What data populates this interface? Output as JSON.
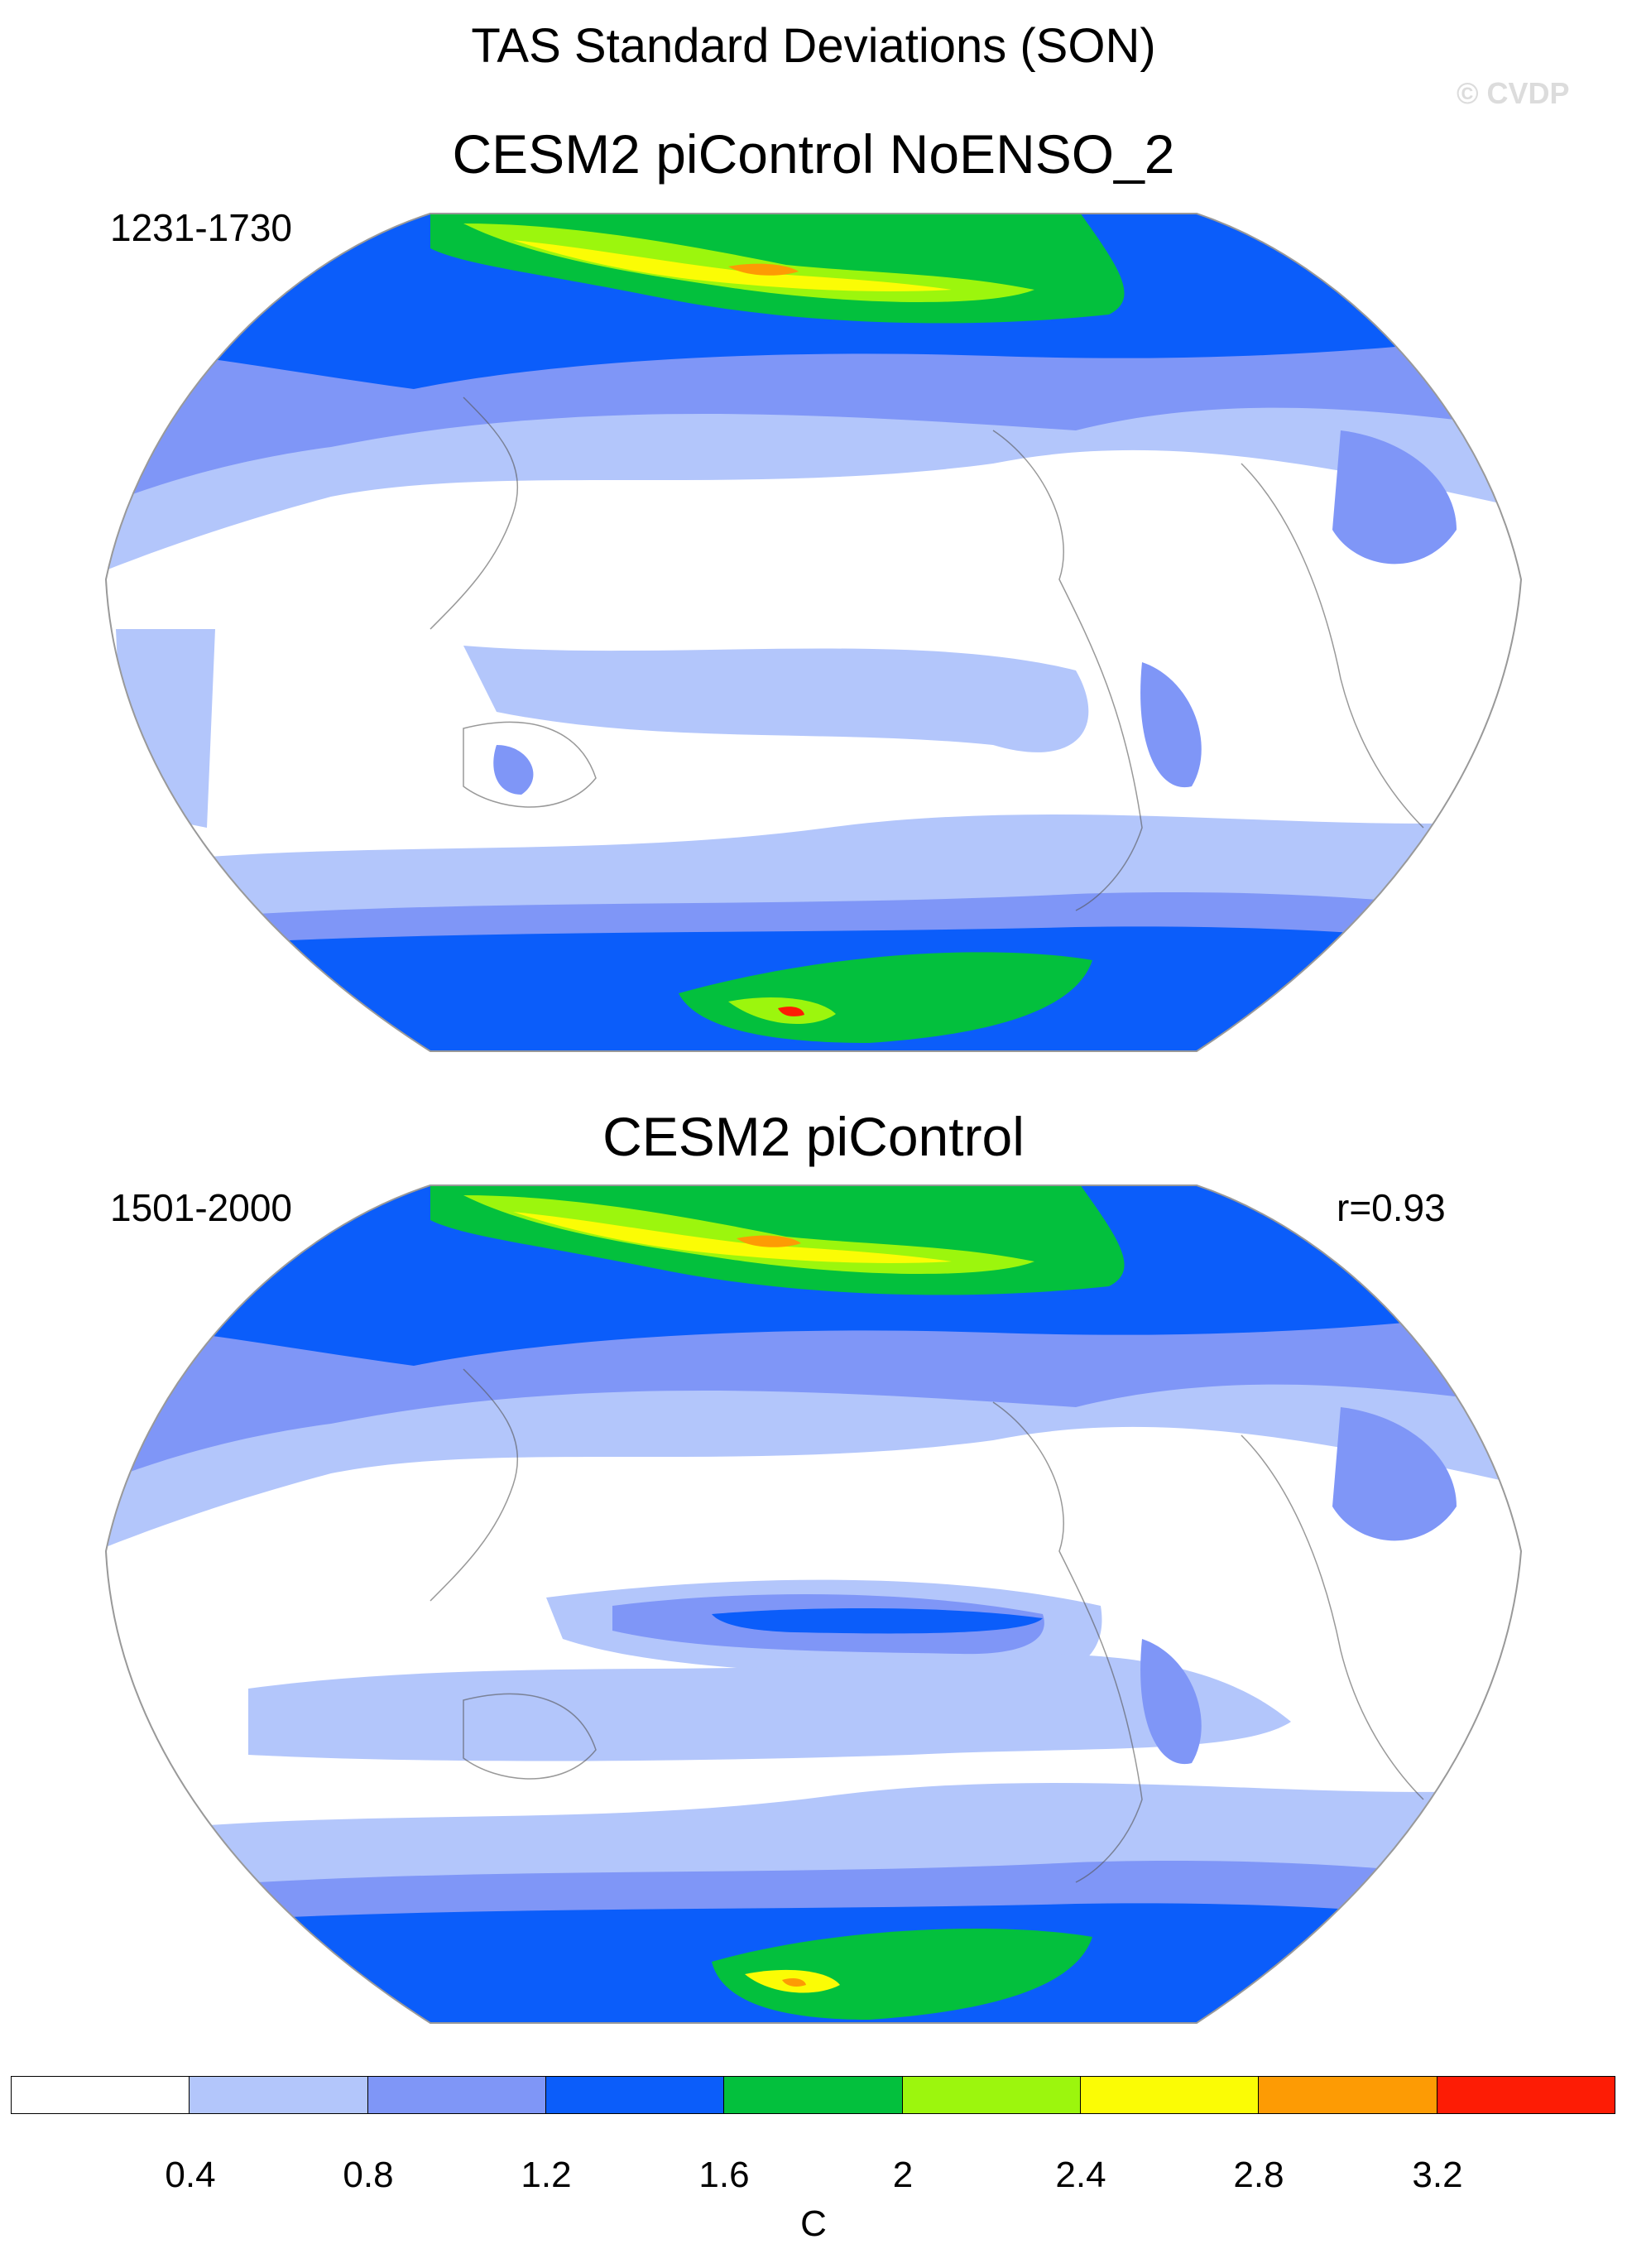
{
  "header": {
    "title": "TAS Standard Deviations (SON)",
    "watermark": "© CVDP"
  },
  "panels": [
    {
      "title": "CESM2 piControl NoENSO_2",
      "period": "1231-1730",
      "corr": ""
    },
    {
      "title": "CESM2 piControl",
      "period": "1501-2000",
      "corr": "r=0.93"
    }
  ],
  "colorbar": {
    "unit": "C",
    "tick_labels": [
      "0.4",
      "0.8",
      "1.2",
      "1.6",
      "2",
      "2.4",
      "2.8",
      "3.2"
    ],
    "colors": [
      "#ffffff",
      "#b3c6fb",
      "#7f96f7",
      "#0b5dfa",
      "#03c03d",
      "#9cf60d",
      "#fbfc05",
      "#fd9b04",
      "#fd1c05"
    ]
  },
  "map": {
    "projection": "Robinson",
    "center_longitude": "Pacific",
    "palette_levels": [
      "0.4",
      "0.8",
      "1.2",
      "1.6",
      "2",
      "2.4",
      "2.8",
      "3.2"
    ]
  }
}
